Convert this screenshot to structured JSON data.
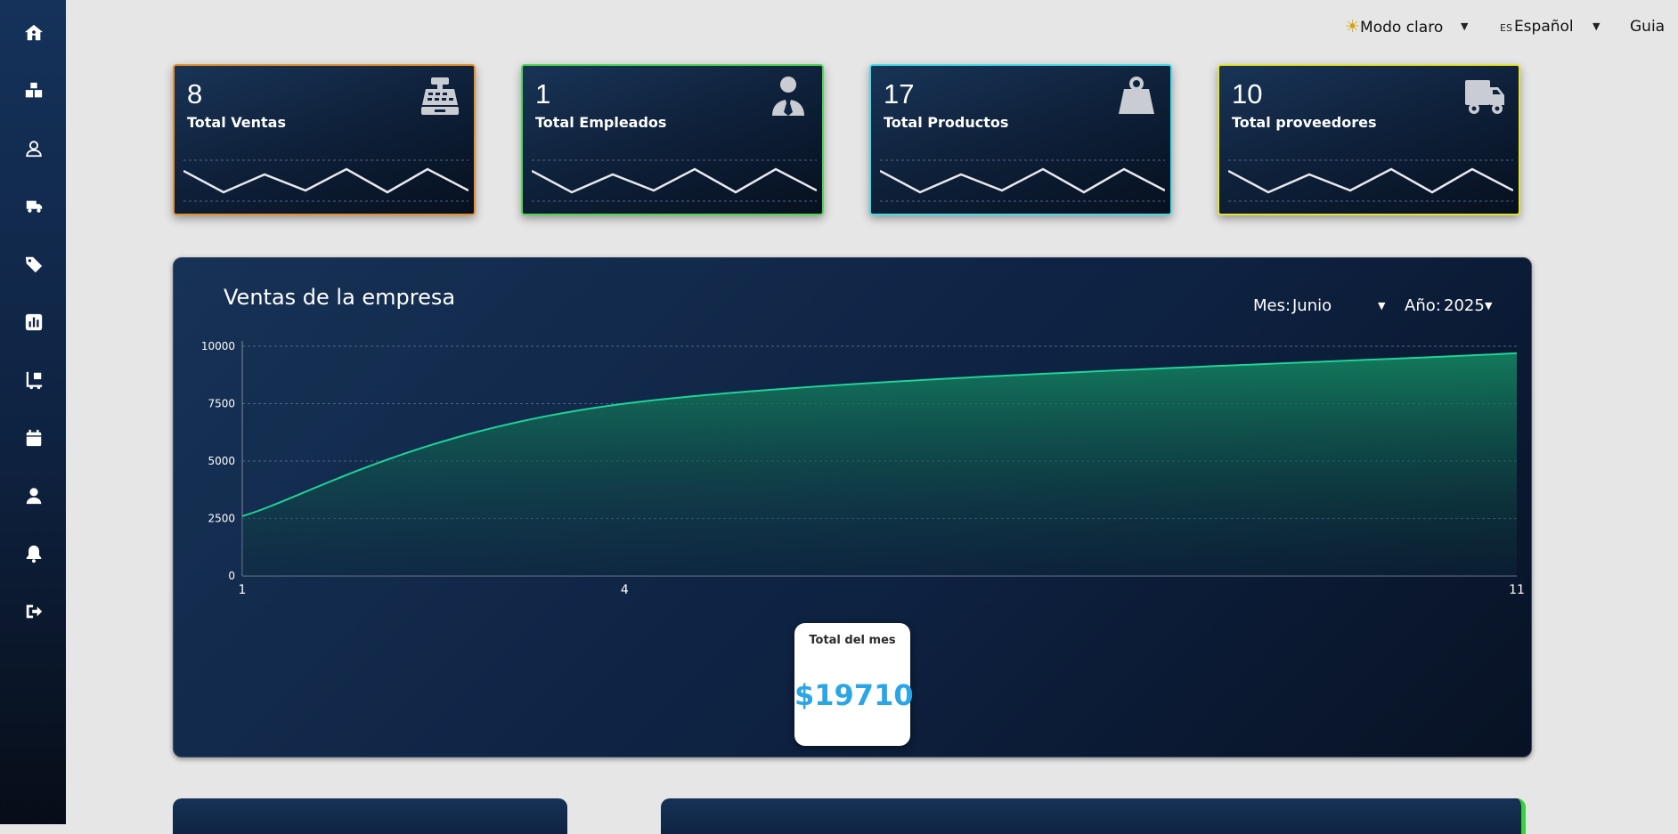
{
  "sidebar": {
    "items": [
      {
        "icon": "home-icon"
      },
      {
        "icon": "boxes-icon"
      },
      {
        "icon": "user-outline-icon"
      },
      {
        "icon": "truck-fast-icon"
      },
      {
        "icon": "tag-icon"
      },
      {
        "icon": "chart-square-icon"
      },
      {
        "icon": "people-carry-icon"
      },
      {
        "icon": "calendar-icon"
      },
      {
        "icon": "user-icon"
      },
      {
        "icon": "bell-icon"
      },
      {
        "icon": "logout-icon"
      }
    ]
  },
  "topbar": {
    "theme_label": "Modo claro",
    "language_code": "ES",
    "language_label": "Español",
    "guide_label": "Guia"
  },
  "cards": [
    {
      "value": "8",
      "label": "Total Ventas",
      "icon": "cash-register-icon",
      "border": "#e8902a"
    },
    {
      "value": "1",
      "label": "Total Empleados",
      "icon": "employee-icon",
      "border": "#4fd84f"
    },
    {
      "value": "17",
      "label": "Total Productos",
      "icon": "weight-bag-icon",
      "border": "#48dbe8"
    },
    {
      "value": "10",
      "label": "Total proveedores",
      "icon": "delivery-truck-icon",
      "border": "#e6e22c"
    }
  ],
  "sales_panel": {
    "title": "Ventas de la empresa",
    "month_label": "Mes:",
    "month_value": "Junio",
    "year_label": "Año:",
    "year_value": "2025",
    "total_label": "Total del mes",
    "total_value": "$19710"
  },
  "chart_data": {
    "type": "area",
    "x": [
      1,
      4,
      11
    ],
    "series": [
      {
        "values": [
          2600,
          7500,
          9700
        ]
      }
    ],
    "x_ticks": [
      "1",
      "4",
      "11"
    ],
    "y_ticks": [
      "0",
      "2500",
      "5000",
      "7500",
      "10000"
    ],
    "ylim": [
      0,
      10000
    ],
    "grid": true,
    "line_color": "#1fd39a"
  }
}
